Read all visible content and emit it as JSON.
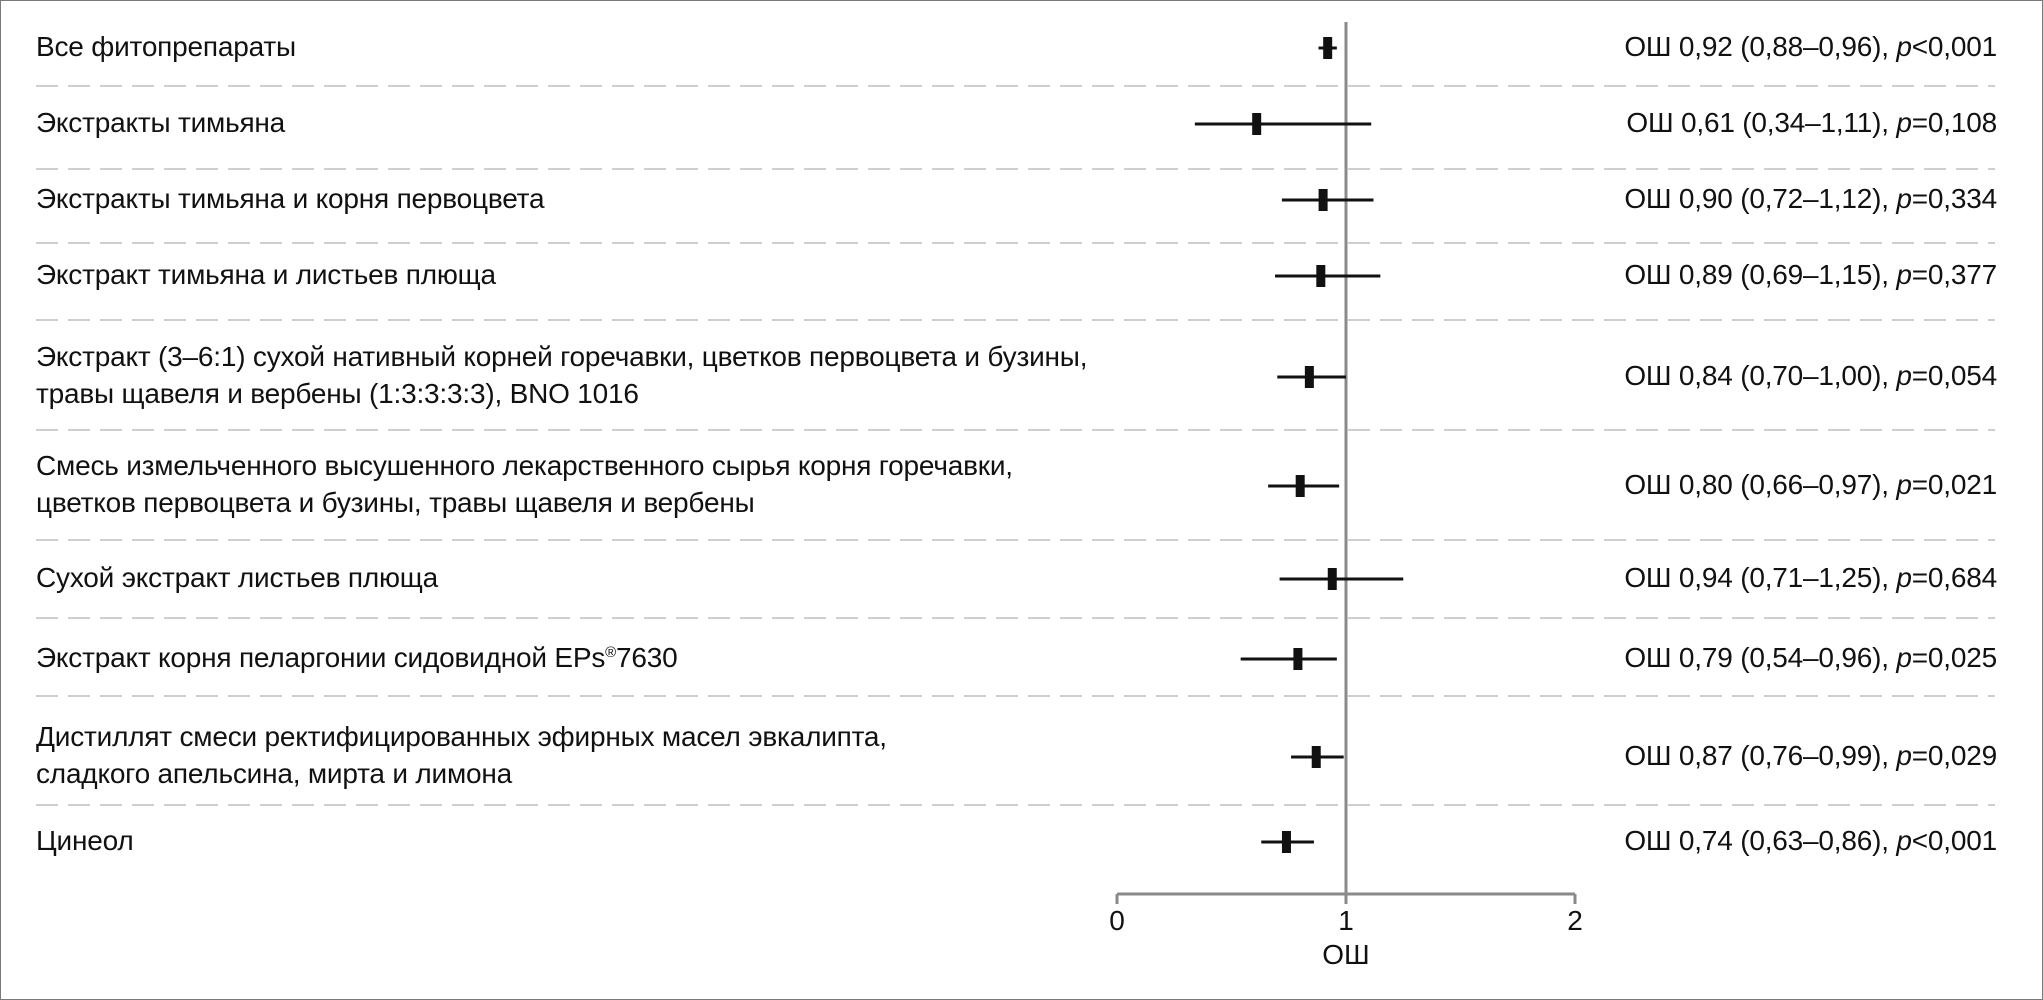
{
  "chart_data": {
    "type": "forest",
    "xlabel": "ОШ",
    "xlim": [
      0,
      2
    ],
    "xticks": [
      "0",
      "1",
      "2"
    ],
    "reference_line": 1,
    "rows": [
      {
        "label_lines": [
          "Все фитопрепараты"
        ],
        "or": 0.92,
        "ci_low": 0.88,
        "ci_high": 0.96,
        "result_prefix": "ОШ 0,92 (0,88–0,96), ",
        "p_letter": "p",
        "p_value": "<0,001"
      },
      {
        "label_lines": [
          "Экстракты тимьяна"
        ],
        "or": 0.61,
        "ci_low": 0.34,
        "ci_high": 1.11,
        "result_prefix": "ОШ 0,61 (0,34–1,11), ",
        "p_letter": "p",
        "p_value": "=0,108"
      },
      {
        "label_lines": [
          "Экстракты тимьяна и корня первоцвета"
        ],
        "or": 0.9,
        "ci_low": 0.72,
        "ci_high": 1.12,
        "result_prefix": "ОШ 0,90 (0,72–1,12), ",
        "p_letter": "p",
        "p_value": "=0,334"
      },
      {
        "label_lines": [
          "Экстракт тимьяна и листьев плюща"
        ],
        "or": 0.89,
        "ci_low": 0.69,
        "ci_high": 1.15,
        "result_prefix": "ОШ 0,89 (0,69–1,15), ",
        "p_letter": "p",
        "p_value": "=0,377"
      },
      {
        "label_lines": [
          "Экстракт (3–6:1) сухой нативный корней горечавки, цветков первоцвета и бузины,",
          "травы щавеля и вербены (1:3:3:3:3), BNO 1016"
        ],
        "or": 0.84,
        "ci_low": 0.7,
        "ci_high": 1.0,
        "result_prefix": "ОШ 0,84 (0,70–1,00), ",
        "p_letter": "p",
        "p_value": "=0,054"
      },
      {
        "label_lines": [
          "Смесь измельченного высушенного лекарственного сырья корня горечавки,",
          "цветков первоцвета и бузины, травы щавеля и вербены"
        ],
        "or": 0.8,
        "ci_low": 0.66,
        "ci_high": 0.97,
        "result_prefix": "ОШ 0,80 (0,66–0,97), ",
        "p_letter": "p",
        "p_value": "=0,021"
      },
      {
        "label_lines": [
          "Сухой экстракт листьев плюща"
        ],
        "or": 0.94,
        "ci_low": 0.71,
        "ci_high": 1.25,
        "result_prefix": "ОШ 0,94 (0,71–1,25), ",
        "p_letter": "p",
        "p_value": "=0,684"
      },
      {
        "label_lines": [
          "Экстракт корня пеларгонии сидовидной EPs®7630"
        ],
        "or": 0.79,
        "ci_low": 0.54,
        "ci_high": 0.96,
        "result_prefix": "ОШ 0,79 (0,54–0,96), ",
        "p_letter": "p",
        "p_value": "=0,025"
      },
      {
        "label_lines": [
          "Дистиллят смеси ректифицированных эфирных масел эвкалипта,",
          "сладкого апельсина, мирта и лимона"
        ],
        "or": 0.87,
        "ci_low": 0.76,
        "ci_high": 0.99,
        "result_prefix": "ОШ 0,87 (0,76–0,99), ",
        "p_letter": "p",
        "p_value": "=0,029"
      },
      {
        "label_lines": [
          "Цинеол"
        ],
        "or": 0.74,
        "ci_low": 0.63,
        "ci_high": 0.86,
        "result_prefix": "ОШ 0,74 (0,63–0,86), ",
        "p_letter": "p",
        "p_value": "<0,001"
      }
    ],
    "colors": {
      "marker": "#111111",
      "axis": "#8a8a8a",
      "separator": "#bdbdbd"
    }
  }
}
